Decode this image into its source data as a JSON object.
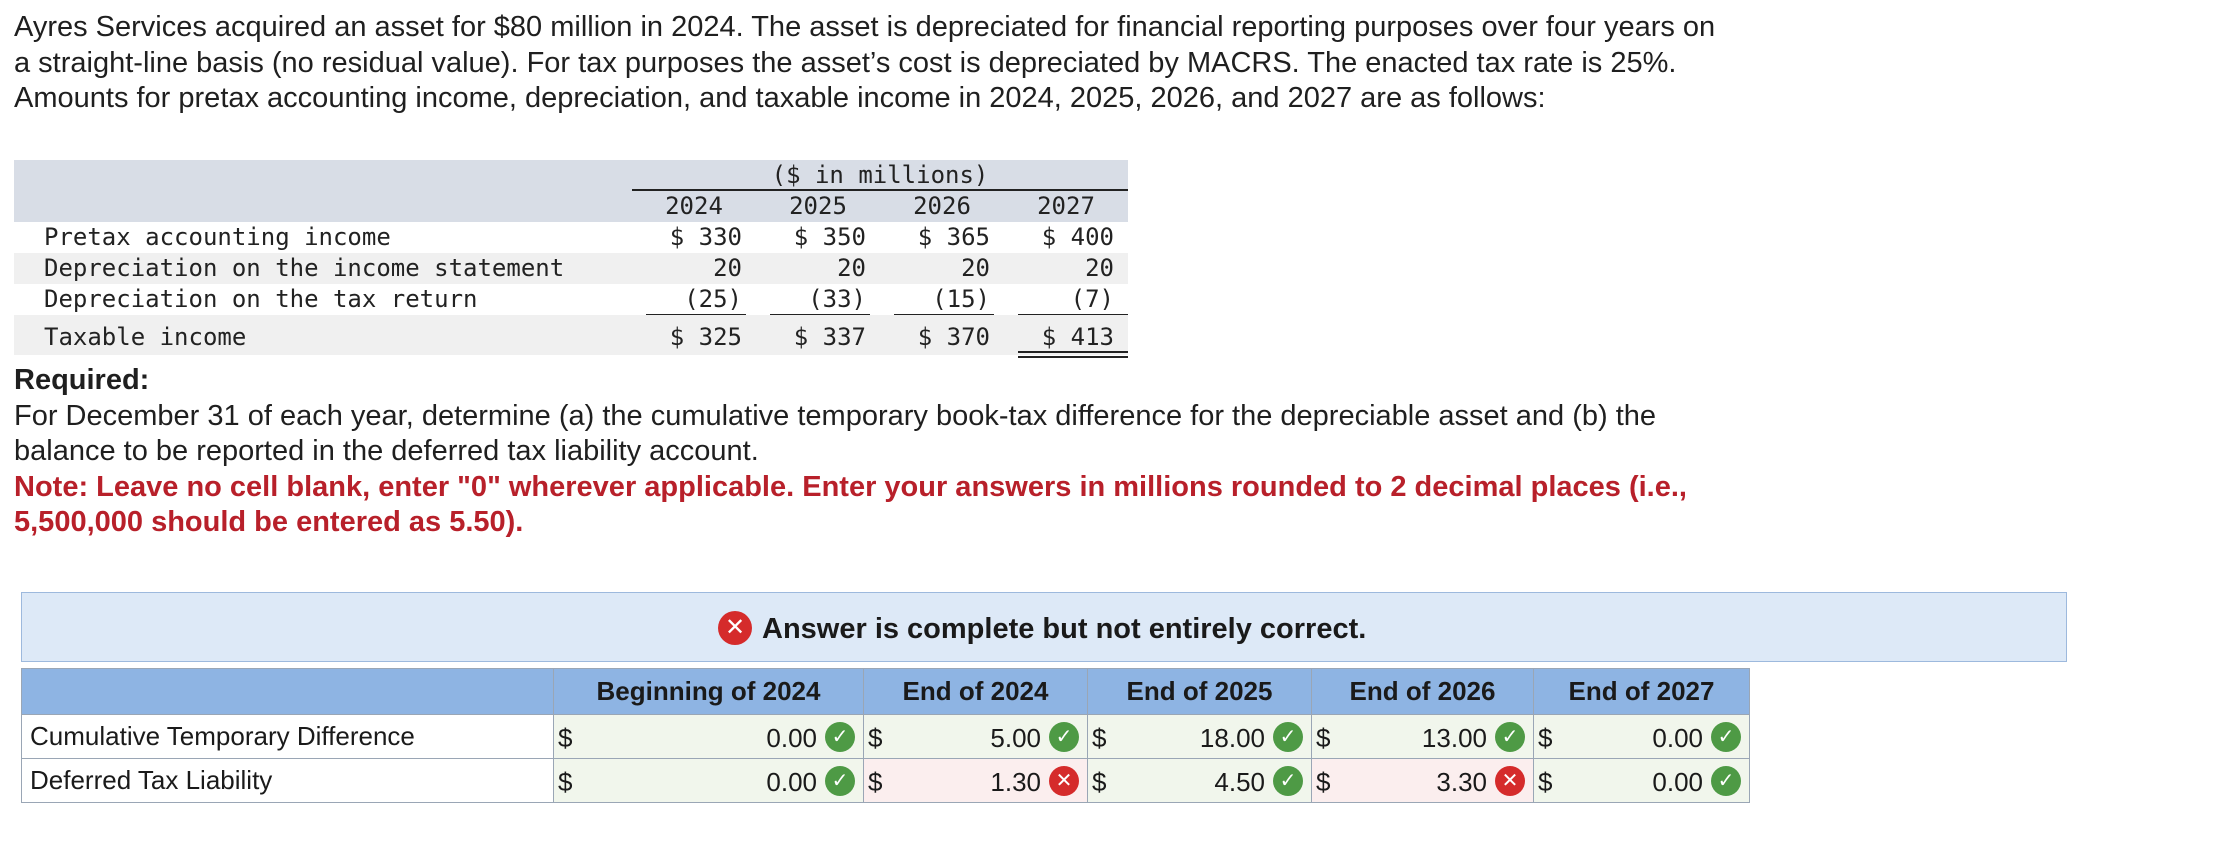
{
  "intro": {
    "line1": "Ayres Services acquired an asset for $80 million in 2024. The asset is depreciated for financial reporting purposes over four years on",
    "line2": "a straight-line basis (no residual value). For tax purposes the asset’s cost is depreciated by MACRS. The enacted tax rate is 25%.",
    "line3": "Amounts for pretax accounting income, depreciation, and taxable income in 2024, 2025, 2026, and 2027 are as follows:"
  },
  "data_table": {
    "units": "($ in millions)",
    "years": [
      "2024",
      "2025",
      "2026",
      "2027"
    ],
    "rows": [
      {
        "label": "Pretax accounting income",
        "values": [
          "$ 330",
          "$ 350",
          "$ 365",
          "$ 400"
        ]
      },
      {
        "label": "Depreciation on the income statement",
        "values": [
          "20",
          "20",
          "20",
          "20"
        ]
      },
      {
        "label": "Depreciation on the tax return",
        "values": [
          "(25)",
          "(33)",
          "(15)",
          "(7)"
        ]
      },
      {
        "label": "Taxable income",
        "values": [
          "$ 325",
          "$ 337",
          "$ 370",
          "$ 413"
        ]
      }
    ]
  },
  "required": {
    "heading": "Required:",
    "text1": "For December 31 of each year, determine (a) the cumulative temporary book-tax difference for the depreciable asset and (b) the",
    "text2": "balance to be reported in the deferred tax liability account.",
    "note1": "Note: Leave no cell blank, enter \"0\" wherever applicable. Enter your answers in millions rounded to 2 decimal places (i.e.,",
    "note2": "5,500,000 should be entered as 5.50)."
  },
  "banner": {
    "icon": "x-circle-icon",
    "message": "Answer is complete but not entirely correct."
  },
  "answer_table": {
    "columns": [
      "Beginning of 2024",
      "End of 2024",
      "End of 2025",
      "End of 2026",
      "End of 2027"
    ],
    "currency": "$",
    "rows": [
      {
        "label": "Cumulative Temporary Difference",
        "values": [
          "0.00",
          "5.00",
          "18.00",
          "13.00",
          "0.00"
        ],
        "status": [
          "correct",
          "correct",
          "correct",
          "correct",
          "correct"
        ]
      },
      {
        "label": "Deferred Tax Liability",
        "values": [
          "0.00",
          "1.30",
          "4.50",
          "3.30",
          "0.00"
        ],
        "status": [
          "correct",
          "incorrect",
          "correct",
          "incorrect",
          "correct"
        ]
      }
    ]
  },
  "colors": {
    "note_red": "#b8202a",
    "header_blue": "#8eb4e3",
    "banner_bg": "#dde9f7",
    "correct_green": "#4e9a45",
    "incorrect_red": "#d52b2b"
  }
}
